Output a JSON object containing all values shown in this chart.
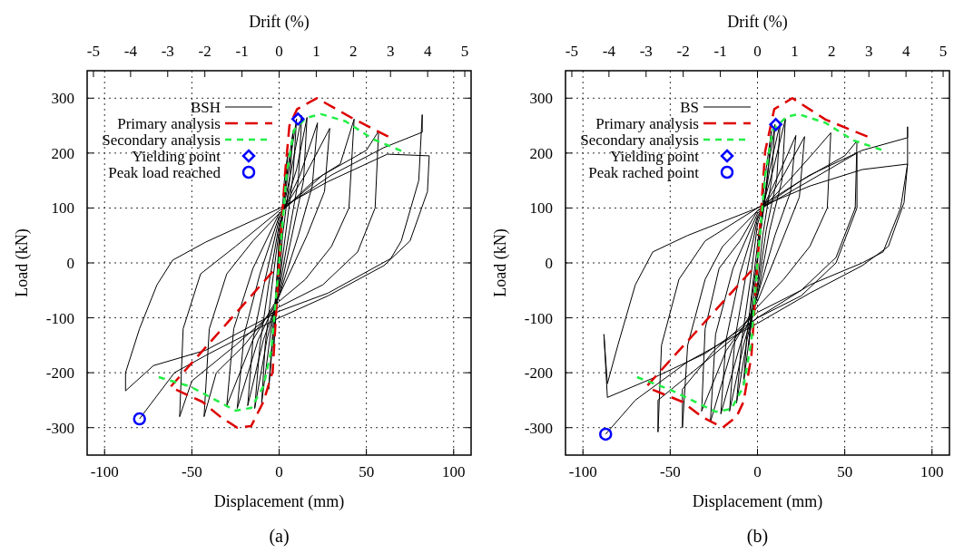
{
  "chart_data": [
    {
      "type": "line",
      "title": "(a)",
      "xlabel": "Displacement (mm)",
      "ylabel": "Load (kN)",
      "x2label": "Drift (%)",
      "xlim": [
        -110,
        110
      ],
      "xticks": [
        -100,
        -50,
        0,
        50,
        100
      ],
      "ylim": [
        -350,
        350
      ],
      "yticks": [
        -300,
        -200,
        -100,
        0,
        100,
        200,
        300
      ],
      "x2lim": [
        -5.17,
        5.17
      ],
      "x2ticks": [
        -5,
        -4,
        -3,
        -2,
        -1,
        0,
        1,
        2,
        3,
        4,
        5
      ],
      "grid": true,
      "legend": "top left",
      "series": [
        {
          "name": "BSH",
          "color": "#000000",
          "line_style": "solid",
          "x": [
            0,
            3,
            5,
            3,
            0,
            -2,
            -3,
            -1,
            0,
            4,
            8,
            6,
            2,
            0,
            -3,
            -6,
            -4,
            -1,
            0,
            5,
            10,
            8,
            4,
            0,
            -5,
            -10,
            -8,
            -4,
            0,
            7,
            13,
            11,
            6,
            0,
            -7,
            -14,
            -11,
            -6,
            0,
            10,
            16,
            14,
            8,
            0,
            -9,
            -18,
            -15,
            -8,
            0,
            12,
            22,
            19,
            11,
            0,
            -12,
            -24,
            -20,
            -11,
            0,
            15,
            29,
            26,
            16,
            0,
            -15,
            -30,
            -26,
            -15,
            0,
            20,
            35,
            43,
            40,
            30,
            15,
            0,
            -20,
            -36,
            -43,
            -40,
            -30,
            -15,
            0,
            25,
            50,
            57,
            55,
            45,
            25,
            0,
            -25,
            -50,
            -57,
            -55,
            -45,
            -25,
            0,
            30,
            60,
            82,
            82,
            80,
            70,
            64,
            28,
            0,
            -42,
            -72,
            -88,
            -88,
            -80,
            -70,
            -61,
            -42,
            0,
            28,
            62,
            86,
            85,
            75,
            60,
            28,
            0,
            -40,
            -60,
            -80
          ],
          "values": [
            0,
            150,
            200,
            120,
            40,
            -60,
            -150,
            -60,
            20,
            150,
            240,
            150,
            50,
            -40,
            -120,
            -230,
            -140,
            -20,
            40,
            160,
            262,
            160,
            60,
            -40,
            -130,
            -255,
            -150,
            -40,
            60,
            170,
            268,
            150,
            60,
            -50,
            -140,
            -265,
            -150,
            -40,
            70,
            170,
            265,
            150,
            60,
            -60,
            -140,
            -260,
            -140,
            -30,
            80,
            160,
            255,
            140,
            50,
            -60,
            -140,
            -265,
            -130,
            -20,
            85,
            160,
            245,
            130,
            50,
            -60,
            -140,
            -260,
            -120,
            -10,
            90,
            150,
            180,
            262,
            100,
            30,
            -30,
            -70,
            -150,
            -200,
            -280,
            -120,
            -20,
            40,
            90,
            160,
            205,
            240,
            100,
            20,
            -40,
            -80,
            -150,
            -215,
            -280,
            -120,
            -20,
            30,
            95,
            160,
            210,
            238,
            270,
            150,
            40,
            8,
            -55,
            -88,
            -159,
            -187,
            -233,
            -200,
            -120,
            -40,
            5,
            38,
            99,
            148,
            198,
            195,
            130,
            40,
            -5,
            -60,
            -100,
            -165,
            -200,
            -284
          ]
        },
        {
          "name": "Primary analysis",
          "color": "#dd0000",
          "line_style": "dashed",
          "x": [
            -59,
            -44,
            -33,
            -24,
            -16,
            -9,
            -3.7,
            0,
            3.3,
            5.9,
            10.3,
            21.6,
            43.4,
            62.5
          ],
          "values": [
            -231,
            -253,
            -282,
            -300,
            -297,
            -253,
            -198,
            0,
            159,
            250,
            280,
            300,
            261,
            230
          ]
        },
        {
          "color": "#dd0000",
          "line_style": "dashed",
          "x": [
            -62,
            -3.7
          ],
          "values": [
            -225,
            -16
          ]
        },
        {
          "name": "Secondary analysis",
          "color": "#22ee44",
          "line_style": "dotted",
          "x": [
            -69,
            -51,
            -25,
            -16,
            -9,
            -4.5,
            0,
            4.2,
            8.5,
            15.5,
            24,
            38,
            54,
            70
          ],
          "values": [
            -208,
            -225,
            -269,
            -264,
            -225,
            -159,
            0,
            159,
            242,
            264,
            271,
            258,
            225,
            204
          ]
        },
        {
          "name": "Yielding point",
          "type": "scatter",
          "marker": "diamond",
          "color": "#0000ff",
          "x": [
            10.8
          ],
          "values": [
            262
          ]
        },
        {
          "name": "Peak load reached",
          "type": "scatter",
          "marker": "circle",
          "color": "#0000ff",
          "x": [
            -80
          ],
          "values": [
            -284
          ]
        }
      ]
    },
    {
      "type": "line",
      "title": "(b)",
      "xlabel": "Displacement (mm)",
      "ylabel": "Load (kN)",
      "x2label": "Drift (%)",
      "xlim": [
        -110,
        110
      ],
      "xticks": [
        -100,
        -50,
        0,
        50,
        100
      ],
      "ylim": [
        -350,
        350
      ],
      "yticks": [
        -300,
        -200,
        -100,
        0,
        100,
        200,
        300
      ],
      "x2lim": [
        -5.17,
        5.17
      ],
      "x2ticks": [
        -5,
        -4,
        -3,
        -2,
        -1,
        0,
        1,
        2,
        3,
        4,
        5
      ],
      "grid": true,
      "legend": "top left",
      "series": [
        {
          "name": "BS",
          "color": "#000000",
          "line_style": "solid",
          "x": [
            0,
            4,
            8,
            5,
            1,
            -2,
            -5,
            -3,
            0,
            2,
            6,
            10,
            8,
            3,
            0,
            -4,
            -8,
            -6,
            -2,
            1,
            7,
            13,
            11,
            5,
            0,
            -6,
            -12,
            -9,
            -4,
            0,
            9,
            16,
            14,
            7,
            0,
            -8,
            -16,
            -13,
            -7,
            0,
            12,
            22,
            19,
            10,
            0,
            -10,
            -21,
            -18,
            -10,
            0,
            15,
            27,
            24,
            14,
            0,
            -14,
            -27,
            -24,
            -14,
            0,
            18,
            32,
            42,
            40,
            30,
            15,
            0,
            -18,
            -32,
            -30,
            -22,
            -10,
            0,
            25,
            50,
            57,
            56,
            45,
            25,
            0,
            -25,
            -43,
            -43,
            -40,
            -30,
            -20,
            0,
            30,
            57,
            57,
            45,
            25,
            0,
            -30,
            -57,
            -57,
            -55,
            -45,
            -30,
            0,
            30,
            60,
            86,
            86,
            86,
            82,
            72,
            60,
            30,
            0,
            -30,
            -60,
            -86,
            -88,
            -86,
            -80,
            -70,
            -60,
            -40,
            0,
            30,
            60,
            86,
            84,
            75,
            60,
            30,
            0,
            -40,
            -70,
            -87
          ],
          "values": [
            0,
            150,
            240,
            130,
            40,
            -60,
            -150,
            -60,
            10,
            60,
            170,
            252,
            150,
            50,
            -40,
            -120,
            -220,
            -130,
            -20,
            60,
            170,
            255,
            150,
            60,
            -50,
            -140,
            -255,
            -140,
            -30,
            70,
            170,
            262,
            150,
            60,
            -60,
            -150,
            -270,
            -140,
            -30,
            80,
            160,
            232,
            130,
            50,
            -60,
            -150,
            -275,
            -140,
            -20,
            85,
            160,
            230,
            120,
            40,
            -70,
            -150,
            -290,
            -130,
            -10,
            90,
            150,
            200,
            237,
            100,
            30,
            -30,
            -80,
            -160,
            -270,
            -120,
            -10,
            40,
            95,
            150,
            195,
            222,
            100,
            10,
            -50,
            -90,
            -160,
            -230,
            -300,
            -150,
            -30,
            30,
            95,
            150,
            200,
            100,
            0,
            -60,
            -100,
            -180,
            -250,
            -308,
            -150,
            -30,
            40,
            100,
            160,
            205,
            228,
            248,
            180,
            100,
            20,
            0,
            -40,
            -100,
            -165,
            -210,
            -245,
            -130,
            -220,
            -150,
            -40,
            20,
            50,
            100,
            140,
            170,
            180,
            110,
            30,
            -5,
            -55,
            -110,
            -180,
            -250,
            -312
          ]
        },
        {
          "name": "Primary analysis",
          "color": "#dd0000",
          "line_style": "dashed",
          "x": [
            -60,
            -43,
            -32,
            -20,
            -12,
            -8,
            -3.5,
            0,
            4.4,
            9.6,
            20,
            39,
            63
          ],
          "values": [
            -231,
            -253,
            -280,
            -300,
            -280,
            -253,
            -170,
            0,
            203,
            280,
            300,
            261,
            230
          ]
        },
        {
          "color": "#dd0000",
          "line_style": "dashed",
          "x": [
            -63,
            -3.5
          ],
          "values": [
            -223,
            -14
          ]
        },
        {
          "name": "Secondary analysis",
          "color": "#22ee44",
          "line_style": "dotted",
          "x": [
            -69,
            -50,
            -24,
            -15,
            -8,
            -3.5,
            0,
            4.4,
            8.7,
            16.6,
            23.5,
            39,
            55,
            71
          ],
          "values": [
            -208,
            -231,
            -271,
            -266,
            -225,
            -143,
            0,
            159,
            242,
            266,
            271,
            255,
            223,
            206
          ]
        },
        {
          "name": "Yielding point",
          "type": "scatter",
          "marker": "diamond",
          "color": "#0000ff",
          "x": [
            10.5
          ],
          "values": [
            252
          ]
        },
        {
          "name": "Peak rached point",
          "type": "scatter",
          "marker": "circle",
          "color": "#0000ff",
          "x": [
            -87
          ],
          "values": [
            -312
          ]
        }
      ]
    }
  ]
}
